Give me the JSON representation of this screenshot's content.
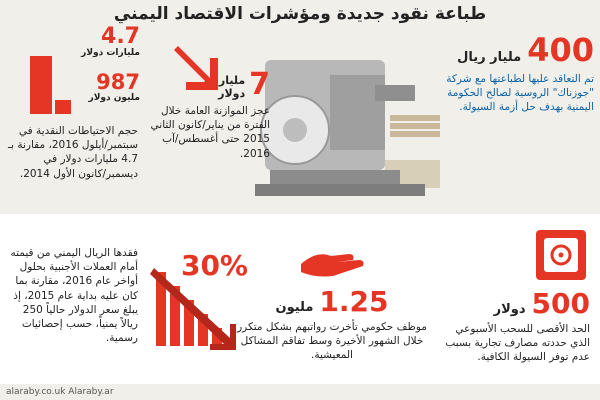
{
  "title": "طباعة نقود جديدة ومؤشرات الاقتصاد اليمني",
  "top_right": {
    "number": "400",
    "unit": "مليار ريال",
    "text": "تم التعاقد عليها لطباعتها مع شركة \"جوزناك\" الروسية لصالح الحكومة اليمنية بهدف حل أزمة السيولة."
  },
  "top_middle": {
    "number": "7",
    "unit_line1": "مليارات",
    "unit_line2": "دولار",
    "text": "عجز الموازنة العامة خلال الفترة من يناير/كانون الثاني 2015 حتى أغسطس/آب 2016."
  },
  "top_left": {
    "big_value": "4.7",
    "big_unit": "مليارات دولار",
    "small_value": "987",
    "small_unit": "مليون دولار",
    "text": "حجم الاحتياطات النقدية في سبتمبر/أيلول 2016، مقارنة بـ 4.7 مليارات دولار في ديسمبر/كانون الأول 2014."
  },
  "bottom_right": {
    "number": "500",
    "unit": "دولار",
    "text": "الحد الأقصى للسحب الأسبوعي الذي حددته مصارف تجارية بسبب عدم توفر السيولة الكافية."
  },
  "bottom_middle": {
    "number": "1.25",
    "unit": "مليون",
    "text": "موظف حكومي تأخرت رواتبهم بشكل متكرر خلال الشهور الأخيرة وسط تفاقم المشاكل المعيشية."
  },
  "bottom_left": {
    "percent": "30%",
    "text": "فقدها الريال اليمني من قيمته أمام العملات الأجنبية بحلول أواخر عام 2016، مقارنة بما كان عليه بداية عام 2015، إذ يبلغ سعر الدولار حالياً 250 ريالاً يمنياً، حسب إحصائيات رسمية."
  },
  "footer": "alaraby.co.uk  Alaraby.ar",
  "colors": {
    "accent": "#e53525",
    "background": "#f1efe9",
    "card": "#ffffff"
  },
  "icons": [
    "down-arrow-icon",
    "safe-icon",
    "hand-icon",
    "declining-bars-icon",
    "printing-press-icon"
  ]
}
